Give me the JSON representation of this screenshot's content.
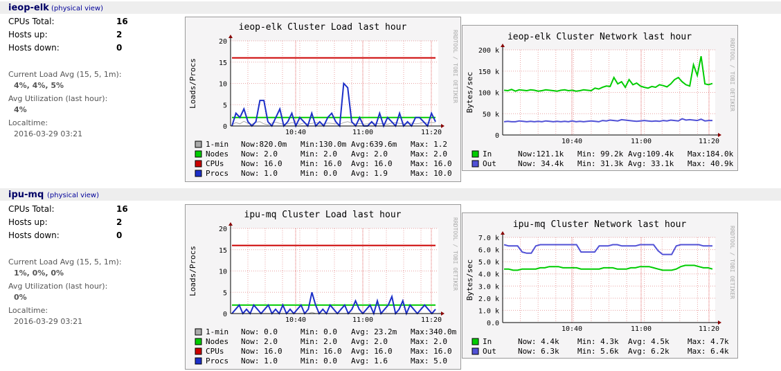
{
  "clusters": [
    {
      "name": "ieop-elk",
      "physical_link": "(physical view)",
      "stats": [
        {
          "label": "CPUs Total:",
          "value": "16"
        },
        {
          "label": "Hosts up:",
          "value": "2"
        },
        {
          "label": "Hosts down:",
          "value": "0"
        }
      ],
      "load_avg_label": "Current Load Avg (15, 5, 1m):",
      "load_avg_value": "4%, 4%, 5%",
      "util_label": "Avg Utilization (last hour):",
      "util_value": "4%",
      "localtime_label": "Localtime:",
      "localtime_value": "2016-03-29 03:21",
      "load_graph": {
        "title": "ieop-elk Cluster Load last hour",
        "side_text": "RRDTOOL / TOBI OETIKER",
        "ylabel": "Loads/Procs",
        "yticks": [
          "20",
          "15",
          "10",
          "5",
          "0"
        ],
        "xticks": [
          "10:40",
          "11:00",
          "11:20"
        ],
        "legend": [
          {
            "name": "1-min",
            "color": "#aaaaaa",
            "now": "Now:820.0m",
            "min": "Min:130.0m",
            "avg": "Avg:639.6m",
            "max": "Max:  1.2"
          },
          {
            "name": "Nodes",
            "color": "#00cc00",
            "now": "Now:   2.0",
            "min": "Min:   2.0",
            "avg": "Avg:   2.0",
            "max": "Max:   2.0"
          },
          {
            "name": "CPUs",
            "color": "#cc0000",
            "now": "Now:  16.0",
            "min": "Min:  16.0",
            "avg": "Avg:  16.0",
            "max": "Max:  16.0"
          },
          {
            "name": "Procs",
            "color": "#1c2fc8",
            "now": "Now:   1.0",
            "min": "Min:   0.0",
            "avg": "Avg:   1.9",
            "max": "Max:  10.0"
          }
        ],
        "chart_data": {
          "type": "line",
          "ylim": [
            0,
            20
          ],
          "series": [
            {
              "name": "CPUs",
              "values": [
                16,
                16
              ]
            },
            {
              "name": "Nodes",
              "values": [
                2,
                2
              ]
            },
            {
              "name": "Procs",
              "values": [
                0,
                3,
                2,
                4,
                1,
                0,
                1,
                6,
                6,
                1,
                0,
                2,
                4,
                0,
                1,
                3,
                0,
                2,
                1,
                0,
                3,
                0,
                1,
                0,
                2,
                3,
                1,
                0,
                10,
                9,
                1,
                0,
                2,
                0,
                0,
                1,
                0,
                3,
                0,
                2,
                1,
                0,
                3,
                0,
                1,
                0,
                2,
                2,
                1,
                0,
                3,
                1
              ]
            },
            {
              "name": "1-min",
              "values": [
                0.3,
                0.8,
                0.5,
                1.1,
                0.6,
                0.4,
                0.9,
                1.0,
                0.5,
                0.3,
                0.7,
                0.9,
                0.6,
                0.4,
                0.5,
                0.8,
                0.6,
                0.4,
                0.7,
                0.5,
                0.6,
                0.8,
                0.4,
                0.5,
                0.7,
                0.6,
                0.5,
                0.4,
                0.8,
                1.0,
                0.7,
                0.5,
                0.6,
                0.4,
                0.5,
                0.7,
                0.6,
                0.5,
                0.6,
                0.4,
                0.7,
                0.8,
                0.6,
                0.5,
                0.6,
                0.7,
                0.5,
                0.6,
                0.8,
                0.7,
                0.8,
                0.8
              ]
            }
          ]
        }
      },
      "network_graph": {
        "title": "ieop-elk Cluster Network last hour",
        "side_text": "RRDTOOL / TOBI OETIKER",
        "ylabel": "Bytes/sec",
        "yticks": [
          "200 k",
          "150 k",
          "100 k",
          "50 k",
          "0"
        ],
        "xticks": [
          "10:40",
          "11:00",
          "11:20"
        ],
        "legend": [
          {
            "name": "In",
            "color": "#00cc00",
            "now": "Now:121.1k",
            "min": "Min: 99.2k",
            "avg": "Avg:109.4k",
            "max": "Max:184.0k"
          },
          {
            "name": "Out",
            "color": "#5151d6",
            "now": "Now: 34.4k",
            "min": "Min: 31.3k",
            "avg": "Avg: 33.1k",
            "max": "Max: 40.9k"
          }
        ],
        "chart_data": {
          "type": "line",
          "ylim": [
            0,
            200000
          ],
          "series": [
            {
              "name": "In",
              "values": [
                105,
                104,
                107,
                103,
                106,
                105,
                104,
                106,
                105,
                103,
                104,
                106,
                105,
                104,
                103,
                105,
                106,
                104,
                105,
                103,
                104,
                106,
                105,
                104,
                110,
                108,
                112,
                115,
                114,
                135,
                120,
                125,
                112,
                130,
                118,
                122,
                115,
                112,
                110,
                114,
                112,
                118,
                116,
                113,
                120,
                130,
                135,
                125,
                118,
                115,
                165,
                140,
                185,
                120,
                118,
                121
              ]
            },
            {
              "name": "Out",
              "values": [
                31,
                32,
                31,
                31,
                33,
                32,
                31,
                32,
                31,
                32,
                31,
                33,
                32,
                31,
                32,
                31,
                32,
                31,
                33,
                31,
                32,
                31,
                32,
                33,
                32,
                31,
                34,
                33,
                35,
                34,
                33,
                36,
                35,
                34,
                33,
                32,
                33,
                34,
                33,
                32,
                33,
                32,
                34,
                33,
                35,
                34,
                33,
                38,
                35,
                36,
                35,
                34,
                37,
                33,
                34,
                34
              ]
            }
          ]
        }
      }
    },
    {
      "name": "ipu-mq",
      "physical_link": "(physical view)",
      "stats": [
        {
          "label": "CPUs Total:",
          "value": "16"
        },
        {
          "label": "Hosts up:",
          "value": "2"
        },
        {
          "label": "Hosts down:",
          "value": "0"
        }
      ],
      "load_avg_label": "Current Load Avg (15, 5, 1m):",
      "load_avg_value": "1%, 0%, 0%",
      "util_label": "Avg Utilization (last hour):",
      "util_value": "0%",
      "localtime_label": "Localtime:",
      "localtime_value": "2016-03-29 03:21",
      "load_graph": {
        "title": "ipu-mq Cluster Load last hour",
        "side_text": "RRDTOOL / TOBI OETIKER",
        "ylabel": "Loads/Procs",
        "yticks": [
          "20",
          "15",
          "10",
          "5",
          "0"
        ],
        "xticks": [
          "10:40",
          "11:00",
          "11:20"
        ],
        "legend": [
          {
            "name": "1-min",
            "color": "#aaaaaa",
            "now": "Now:   0.0",
            "min": "Min:   0.0",
            "avg": "Avg: 23.2m",
            "max": "Max:340.0m"
          },
          {
            "name": "Nodes",
            "color": "#00cc00",
            "now": "Now:   2.0",
            "min": "Min:   2.0",
            "avg": "Avg:   2.0",
            "max": "Max:   2.0"
          },
          {
            "name": "CPUs",
            "color": "#cc0000",
            "now": "Now:  16.0",
            "min": "Min:  16.0",
            "avg": "Avg:  16.0",
            "max": "Max:  16.0"
          },
          {
            "name": "Procs",
            "color": "#1c2fc8",
            "now": "Now:   1.0",
            "min": "Min:   0.0",
            "avg": "Avg:   1.6",
            "max": "Max:   5.0"
          }
        ],
        "chart_data": {
          "type": "line",
          "ylim": [
            0,
            20
          ],
          "series": [
            {
              "name": "CPUs",
              "values": [
                16,
                16
              ]
            },
            {
              "name": "Nodes",
              "values": [
                2,
                2
              ]
            },
            {
              "name": "Procs",
              "values": [
                0,
                1,
                2,
                0,
                1,
                0,
                2,
                1,
                0,
                1,
                2,
                0,
                1,
                0,
                2,
                0,
                1,
                0,
                1,
                2,
                0,
                1,
                5,
                2,
                0,
                1,
                0,
                2,
                1,
                0,
                1,
                2,
                0,
                1,
                3,
                1,
                0,
                1,
                2,
                0,
                3,
                0,
                1,
                2,
                4,
                0,
                1,
                3,
                0,
                2,
                1,
                0,
                1,
                2,
                1,
                0,
                1
              ]
            },
            {
              "name": "1-min",
              "values": [
                0,
                0,
                0,
                0,
                0,
                0,
                0,
                0,
                0,
                0,
                0,
                0,
                0,
                0,
                0,
                0,
                0,
                0,
                0,
                0,
                0,
                0,
                0.3,
                0,
                0,
                0,
                0,
                0,
                0,
                0,
                0,
                0,
                0,
                0,
                0,
                0,
                0,
                0,
                0,
                0,
                0,
                0,
                0,
                0,
                0,
                0,
                0,
                0,
                0,
                0,
                0,
                0,
                0,
                0,
                0,
                0,
                0
              ]
            }
          ]
        }
      },
      "network_graph": {
        "title": "ipu-mq Cluster Network last hour",
        "side_text": "RRDTOOL / TOBI OETIKER",
        "ylabel": "Bytes/sec",
        "yticks": [
          "7.0 k",
          "6.0 k",
          "5.0 k",
          "4.0 k",
          "3.0 k",
          "2.0 k",
          "1.0 k",
          "0.0"
        ],
        "xticks": [
          "10:40",
          "11:00",
          "11:20"
        ],
        "legend": [
          {
            "name": "In",
            "color": "#00cc00",
            "now": "Now:  4.4k",
            "min": "Min:  4.3k",
            "avg": "Avg:  4.5k",
            "max": "Max:  4.7k"
          },
          {
            "name": "Out",
            "color": "#5151d6",
            "now": "Now:  6.3k",
            "min": "Min:  5.6k",
            "avg": "Avg:  6.2k",
            "max": "Max:  6.4k"
          }
        ],
        "chart_data": {
          "type": "line",
          "ylim": [
            0,
            7000
          ],
          "series": [
            {
              "name": "In",
              "values": [
                4.4,
                4.4,
                4.3,
                4.3,
                4.4,
                4.4,
                4.4,
                4.4,
                4.5,
                4.5,
                4.6,
                4.6,
                4.6,
                4.5,
                4.5,
                4.5,
                4.5,
                4.4,
                4.4,
                4.4,
                4.4,
                4.4,
                4.5,
                4.5,
                4.5,
                4.4,
                4.4,
                4.4,
                4.5,
                4.5,
                4.6,
                4.6,
                4.6,
                4.5,
                4.4,
                4.3,
                4.3,
                4.3,
                4.4,
                4.6,
                4.7,
                4.7,
                4.7,
                4.6,
                4.5,
                4.5,
                4.4
              ]
            },
            {
              "name": "Out",
              "values": [
                6.4,
                6.3,
                6.3,
                6.3,
                5.8,
                5.7,
                5.7,
                6.3,
                6.4,
                6.4,
                6.4,
                6.4,
                6.4,
                6.4,
                6.4,
                6.4,
                6.4,
                5.8,
                5.8,
                5.8,
                5.8,
                6.3,
                6.3,
                6.3,
                6.4,
                6.4,
                6.3,
                6.3,
                6.3,
                6.3,
                6.4,
                6.4,
                6.4,
                6.4,
                5.9,
                5.6,
                5.6,
                5.6,
                6.3,
                6.4,
                6.4,
                6.4,
                6.4,
                6.4,
                6.3,
                6.3,
                6.3
              ]
            }
          ]
        }
      }
    }
  ],
  "colors": {
    "header_bg": "#eeeeee",
    "cluster_name": "#000066",
    "graph_bg": "#f5f4f5",
    "grid": "#e8a0a0"
  }
}
